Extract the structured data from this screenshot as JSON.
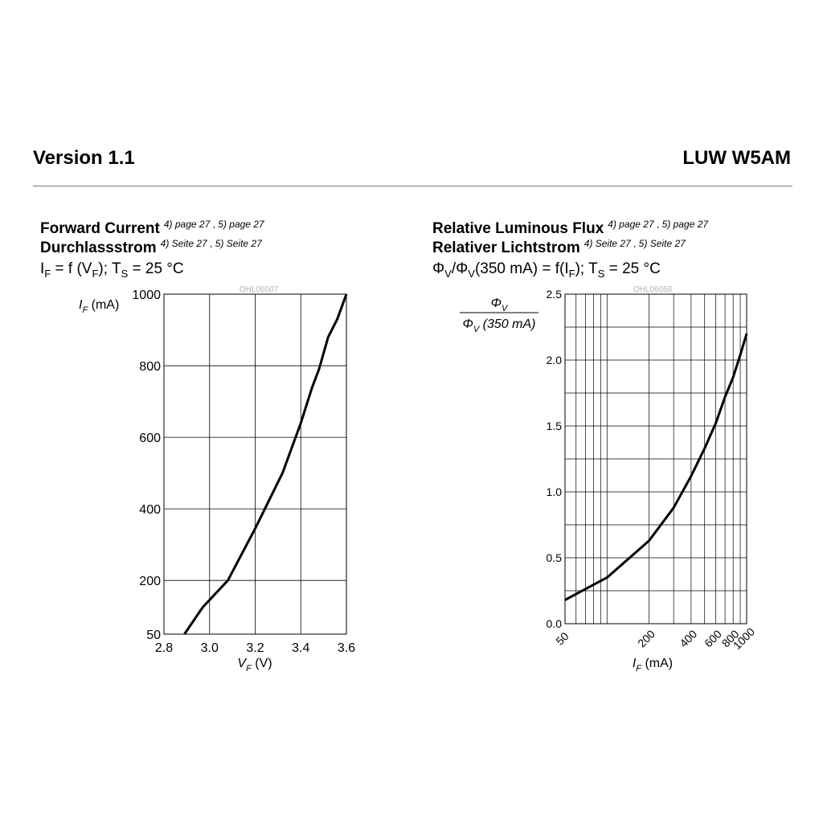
{
  "header": {
    "version": "Version 1.1",
    "product": "LUW W5AM"
  },
  "colors": {
    "rule": "#7a7a7a",
    "grid": "#000000",
    "curve": "#000000",
    "code": "#b3b3b3"
  },
  "chart_data": [
    {
      "type": "line",
      "title_en": "Forward Current",
      "title_de": "Durchlassstrom",
      "ref_en": [
        "4) page 27",
        "5) page 27"
      ],
      "ref_de": [
        "4) Seite 27",
        "5) Seite 27"
      ],
      "formula": {
        "a": "I",
        "a_sub": "F",
        "b": " = f (V",
        "b_sub": "F",
        "c": "); T",
        "c_sub": "S",
        "d": " = 25 °C"
      },
      "code": "OHL06007",
      "ylabel": {
        "sym": "I",
        "sub": "F",
        "unit": " (mA)"
      },
      "xlabel": {
        "sym": "V",
        "sub": "F",
        "unit": " (V)"
      },
      "xlim": [
        2.8,
        3.6
      ],
      "ylim": [
        50,
        1000
      ],
      "xticks": [
        "2.8",
        "3.0",
        "3.2",
        "3.4",
        "3.6"
      ],
      "yticks": [
        "50",
        "200",
        "400",
        "600",
        "800",
        "1000"
      ],
      "grid": true,
      "x": [
        2.89,
        2.97,
        3.08,
        3.2,
        3.32,
        3.4,
        3.45,
        3.48,
        3.52,
        3.56,
        3.6
      ],
      "y": [
        50,
        125,
        200,
        345,
        500,
        640,
        740,
        790,
        880,
        930,
        1000
      ]
    },
    {
      "type": "line",
      "title_en": "Relative Luminous Flux",
      "title_de": "Relativer Lichtstrom",
      "ref_en": [
        "4) page 27",
        "5) page 27"
      ],
      "ref_de": [
        "4) Seite 27",
        "5) Seite 27"
      ],
      "formula": {
        "a": "Φ",
        "a_sub": "V",
        "b": "/Φ",
        "b_sub": "V",
        "c": "(350 mA) = f(I",
        "c_sub": "F",
        "d": "); T",
        "d_sub": "S",
        "e": " = 25 °C"
      },
      "code": "OHL06058",
      "ylabel": {
        "num": "Φ",
        "num_sub": "V",
        "den": "Φ",
        "den_sub": "V",
        "den_rest": " (350 mA)"
      },
      "xlabel": {
        "sym": "I",
        "sub": "F",
        "unit": " (mA)"
      },
      "xlim": [
        50,
        1000
      ],
      "ylim": [
        0,
        2.5
      ],
      "xticks": [
        "50",
        "200",
        "400",
        "600",
        "800",
        "1000"
      ],
      "yticks": [
        "0.0",
        "0.5",
        "1.0",
        "1.5",
        "2.0",
        "2.5"
      ],
      "grid": true,
      "x": [
        50,
        100,
        200,
        300,
        400,
        500,
        600,
        700,
        800,
        900,
        1000
      ],
      "y": [
        0.18,
        0.35,
        0.63,
        0.88,
        1.12,
        1.33,
        1.52,
        1.72,
        1.87,
        2.04,
        2.2
      ]
    }
  ]
}
